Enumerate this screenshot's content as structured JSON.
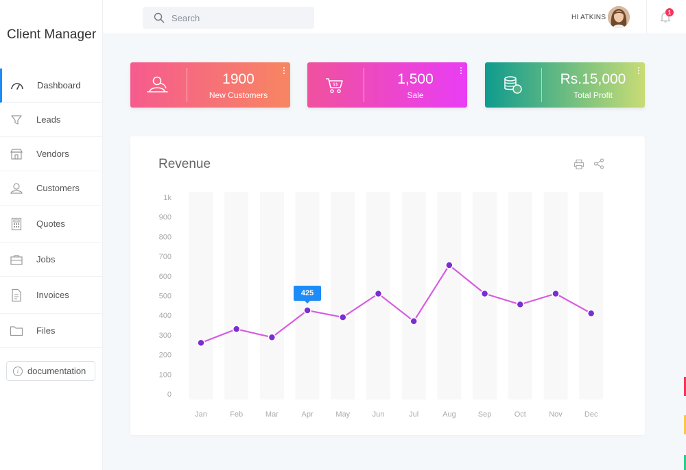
{
  "app": {
    "brand": "Client Manager"
  },
  "sidebar": {
    "items": [
      {
        "label": "Dashboard",
        "icon": "dashboard-icon",
        "active": true
      },
      {
        "label": "Leads",
        "icon": "funnel-icon"
      },
      {
        "label": "Vendors",
        "icon": "store-icon"
      },
      {
        "label": "Customers",
        "icon": "user-icon"
      },
      {
        "label": "Quotes",
        "icon": "calculator-icon"
      },
      {
        "label": "Jobs",
        "icon": "briefcase-icon"
      },
      {
        "label": "Invoices",
        "icon": "document-icon"
      },
      {
        "label": "Files",
        "icon": "folder-icon"
      }
    ],
    "documentation_label": "documentation"
  },
  "header": {
    "search_placeholder": "Search",
    "greeting": "HI ATKINS",
    "notification_count": "1"
  },
  "cards": [
    {
      "value": "1900",
      "label": "New Customers",
      "icon": "customers-icon"
    },
    {
      "value": "1,500",
      "label": "Sale",
      "icon": "cart-icon"
    },
    {
      "value": "Rs.15,000",
      "label": "Total Profit",
      "icon": "coins-icon"
    }
  ],
  "revenue": {
    "title": "Revenue"
  },
  "chart_data": {
    "type": "line",
    "title": "Revenue",
    "categories": [
      "Jan",
      "Feb",
      "Mar",
      "Apr",
      "May",
      "Jun",
      "Jul",
      "Aug",
      "Sep",
      "Oct",
      "Nov",
      "Dec"
    ],
    "values": [
      260,
      330,
      288,
      425,
      390,
      510,
      370,
      655,
      510,
      455,
      510,
      410
    ],
    "ylim": [
      0,
      1000
    ],
    "yticks": [
      "0",
      "100",
      "200",
      "300",
      "400",
      "500",
      "600",
      "700",
      "800",
      "900",
      "1k"
    ],
    "tooltip": {
      "category": "Apr",
      "value": "425"
    },
    "line_color": "#d65ce0",
    "point_color": "#7a2fd0",
    "grid": false
  },
  "colors": {
    "accent": "#1d8cf8",
    "badge": "#f5365c",
    "edge_marks": [
      "#f5365c",
      "#f7c948",
      "#2dce89"
    ]
  }
}
